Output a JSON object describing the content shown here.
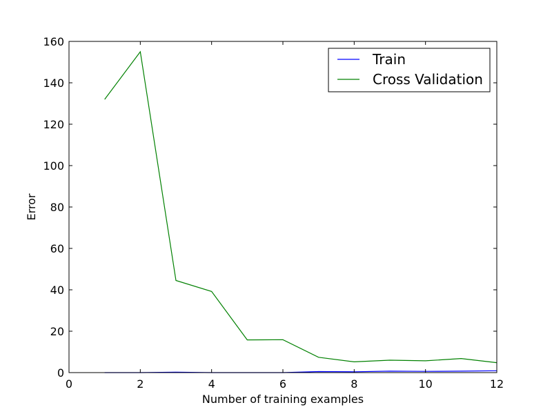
{
  "chart_data": {
    "type": "line",
    "xlabel": "Number of training examples",
    "ylabel": "Error",
    "xlim": [
      0,
      12
    ],
    "ylim": [
      0,
      160
    ],
    "xticks": [
      0,
      2,
      4,
      6,
      8,
      10,
      12
    ],
    "yticks": [
      0,
      20,
      40,
      60,
      80,
      100,
      120,
      140,
      160
    ],
    "grid": false,
    "legend_position": "top-right",
    "x": [
      1,
      2,
      3,
      4,
      5,
      6,
      7,
      8,
      9,
      10,
      11,
      12
    ],
    "series": [
      {
        "name": "Train",
        "color": "#0000ff",
        "values": [
          0.0,
          0.0,
          0.2,
          0.0,
          0.0,
          0.0,
          0.5,
          0.4,
          0.7,
          0.6,
          0.7,
          0.9
        ]
      },
      {
        "name": "Cross Validation",
        "color": "#008000",
        "values": [
          132.0,
          155.0,
          44.5,
          39.2,
          15.8,
          15.9,
          7.4,
          5.2,
          6.0,
          5.7,
          6.8,
          4.8
        ]
      }
    ]
  }
}
